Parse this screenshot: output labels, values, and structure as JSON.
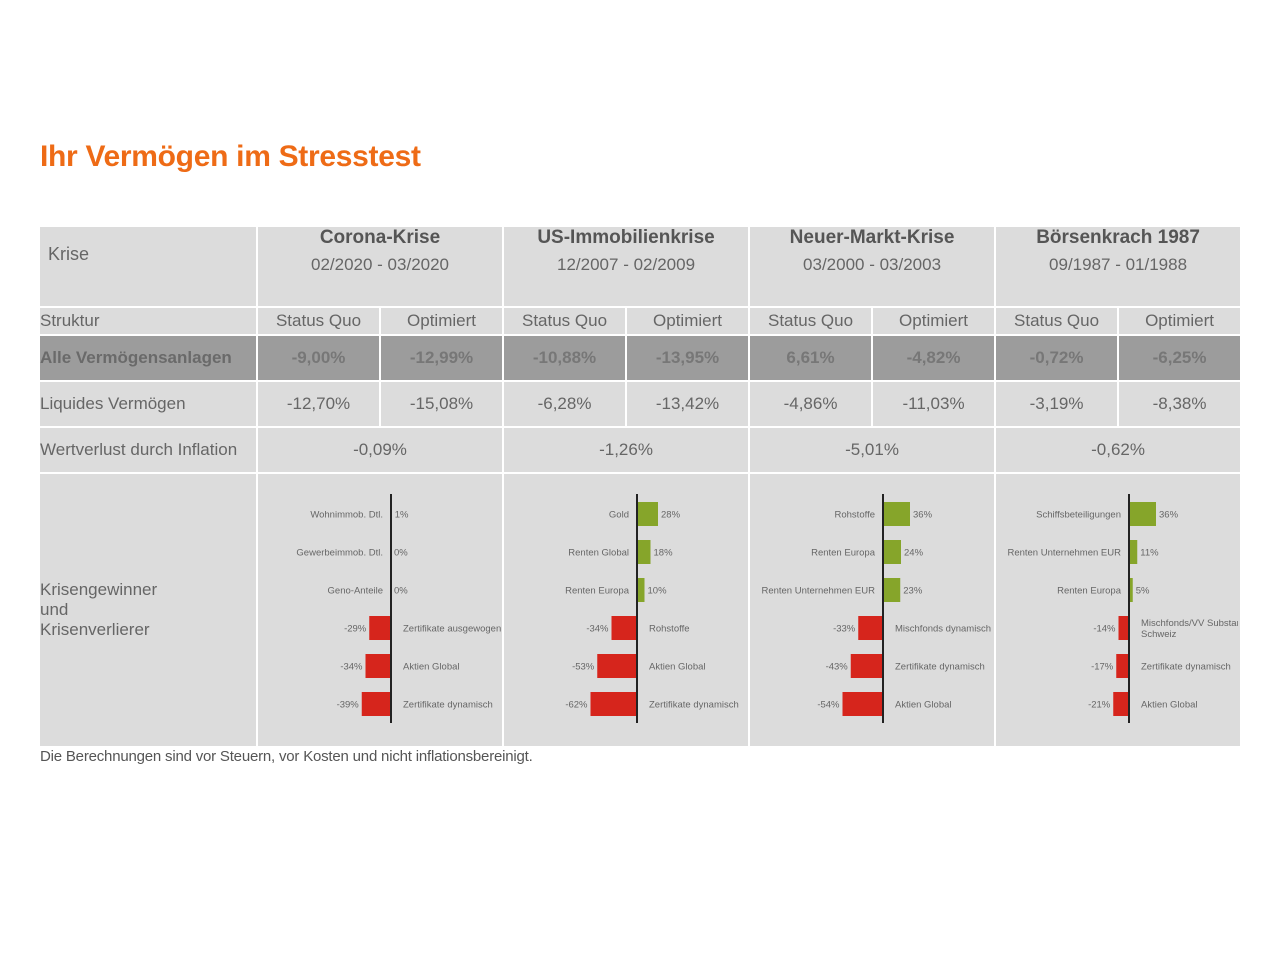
{
  "title": "Ihr Vermögen im Stresstest",
  "labels": {
    "krise": "Krise",
    "struktur": "Struktur",
    "status_quo": "Status Quo",
    "optimiert": "Optimiert",
    "alle": "Alle Vermögensanlagen",
    "liquide": "Liquides Vermögen",
    "inflation": "Wertverlust durch Inflation",
    "gewinner_l1": "Krisengewinner",
    "gewinner_l2": "und",
    "gewinner_l3": "Krisenverlierer"
  },
  "crises": [
    {
      "name": "Corona-Krise",
      "period": "02/2020 - 03/2020",
      "alle_sq": "-9,00%",
      "alle_opt": "-12,99%",
      "liq_sq": "-12,70%",
      "liq_opt": "-15,08%",
      "inflation": "-0,09%"
    },
    {
      "name": "US-Immobilienkrise",
      "period": "12/2007 - 02/2009",
      "alle_sq": "-10,88%",
      "alle_opt": "-13,95%",
      "liq_sq": "-6,28%",
      "liq_opt": "-13,42%",
      "inflation": "-1,26%"
    },
    {
      "name": "Neuer-Markt-Krise",
      "period": "03/2000 - 03/2003",
      "alle_sq": "6,61%",
      "alle_opt": "-4,82%",
      "liq_sq": "-4,86%",
      "liq_opt": "-11,03%",
      "inflation": "-5,01%"
    },
    {
      "name": "Börsenkrach 1987",
      "period": "09/1987 - 01/1988",
      "alle_sq": "-0,72%",
      "alle_opt": "-6,25%",
      "liq_sq": "-3,19%",
      "liq_opt": "-8,38%",
      "inflation": "-0,62%"
    }
  ],
  "colors": {
    "positive": "#86a52a",
    "negative": "#d6251c",
    "axis": "#222222",
    "title": "#ee6b16"
  },
  "footnote": "Die Berechnungen sind vor Steuern, vor Kosten und nicht inflationsbereinigt.",
  "chart_data": [
    {
      "type": "bar",
      "orientation": "horizontal",
      "title": "Corona-Krise",
      "categories": [
        "Wohnimmob. Dtl.",
        "Gewerbeimmob. Dtl.",
        "Geno-Anteile",
        "Zertifikate ausgewogen",
        "Aktien Global",
        "Zertifikate dynamisch"
      ],
      "values": [
        1,
        0,
        0,
        -29,
        -34,
        -39
      ],
      "value_labels": [
        "1%",
        "0%",
        "0%",
        "-29%",
        "-34%",
        "-39%"
      ]
    },
    {
      "type": "bar",
      "orientation": "horizontal",
      "title": "US-Immobilienkrise",
      "categories": [
        "Gold",
        "Renten Global",
        "Renten Europa",
        "Rohstoffe",
        "Aktien Global",
        "Zertifikate dynamisch"
      ],
      "values": [
        28,
        18,
        10,
        -34,
        -53,
        -62
      ],
      "value_labels": [
        "28%",
        "18%",
        "10%",
        "-34%",
        "-53%",
        "-62%"
      ]
    },
    {
      "type": "bar",
      "orientation": "horizontal",
      "title": "Neuer-Markt-Krise",
      "categories": [
        "Rohstoffe",
        "Renten Europa",
        "Renten Unternehmen EUR",
        "Mischfonds dynamisch",
        "Zertifikate dynamisch",
        "Aktien Global"
      ],
      "values": [
        36,
        24,
        23,
        -33,
        -43,
        -54
      ],
      "value_labels": [
        "36%",
        "24%",
        "23%",
        "-33%",
        "-43%",
        "-54%"
      ]
    },
    {
      "type": "bar",
      "orientation": "horizontal",
      "title": "Börsenkrach 1987",
      "categories": [
        "Schiffsbeteiligungen",
        "Renten Unternehmen EUR",
        "Renten Europa",
        "Mischfonds/VV Substanz Schweiz",
        "Zertifikate dynamisch",
        "Aktien Global"
      ],
      "values": [
        36,
        11,
        5,
        -14,
        -17,
        -21
      ],
      "value_labels": [
        "36%",
        "11%",
        "5%",
        "-14%",
        "-17%",
        "-21%"
      ]
    }
  ]
}
